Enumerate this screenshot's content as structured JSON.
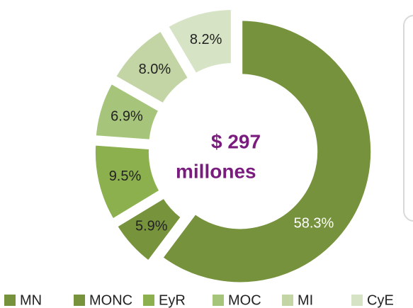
{
  "chart_data": {
    "type": "donut",
    "categories": [
      "MN",
      "MONC",
      "EyR",
      "MOC",
      "MI",
      "CyE"
    ],
    "values": [
      58.3,
      5.9,
      9.5,
      6.9,
      8.0,
      8.2
    ],
    "value_labels": [
      "58.3%",
      "5.9%",
      "9.5%",
      "6.9%",
      "8.0%",
      "8.2%"
    ],
    "colors": [
      "#76923c",
      "#77933c",
      "#8db04f",
      "#a6c57a",
      "#c3d5a4",
      "#d7e3c5"
    ],
    "center_text": [
      "$ 297",
      "millones"
    ],
    "legend": "bottom"
  }
}
